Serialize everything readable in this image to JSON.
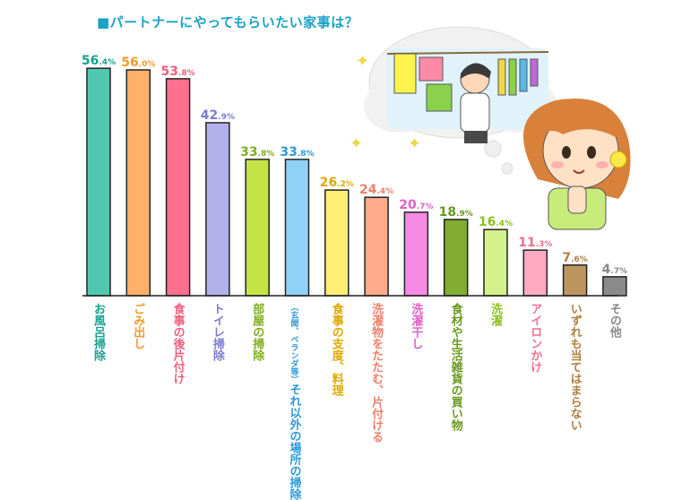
{
  "title": "■パートナーにやってもらいたい家事は？",
  "chart_data": {
    "type": "bar",
    "title": "■パートナーにやってもらいたい家事は？",
    "ylim": [
      0,
      60
    ],
    "categories": [
      "お風呂掃除",
      "ごみ出し",
      "食事の後片付け",
      "トイレ掃除",
      "部屋の掃除",
      "それ以外の場所の掃除",
      "食事の支度、料理",
      "洗濯物をたたむ、片付ける",
      "洗濯干し",
      "食材や生活雑貨の買い物",
      "洗濯",
      "アイロンかけ",
      "いずれも当てはまらない",
      "その他"
    ],
    "category_notes": [
      "",
      "",
      "",
      "",
      "",
      "（玄関、ベランダ等）",
      "",
      "",
      "",
      "",
      "",
      "",
      "",
      ""
    ],
    "values": [
      56.4,
      56.0,
      53.8,
      42.9,
      33.8,
      33.8,
      26.2,
      24.4,
      20.7,
      18.9,
      16.4,
      11.3,
      7.6,
      4.7
    ],
    "unit": "%",
    "colors": [
      "#52c7b0",
      "#ffb06a",
      "#ff6f8e",
      "#b3b1ec",
      "#c6e346",
      "#8fd1f7",
      "#ffee74",
      "#ffab8c",
      "#f78ae3",
      "#80ad32",
      "#d3f28c",
      "#ffaac1",
      "#bd9560",
      "#8a8a8a"
    ],
    "label_colors": [
      "#1aa090",
      "#f59a2a",
      "#f0607e",
      "#7e7bd2",
      "#7fae1d",
      "#2e9ad8",
      "#e0a800",
      "#f0806a",
      "#e060c8",
      "#6a9a20",
      "#90c020",
      "#f0708e",
      "#b08040",
      "#8a8a8a"
    ]
  }
}
